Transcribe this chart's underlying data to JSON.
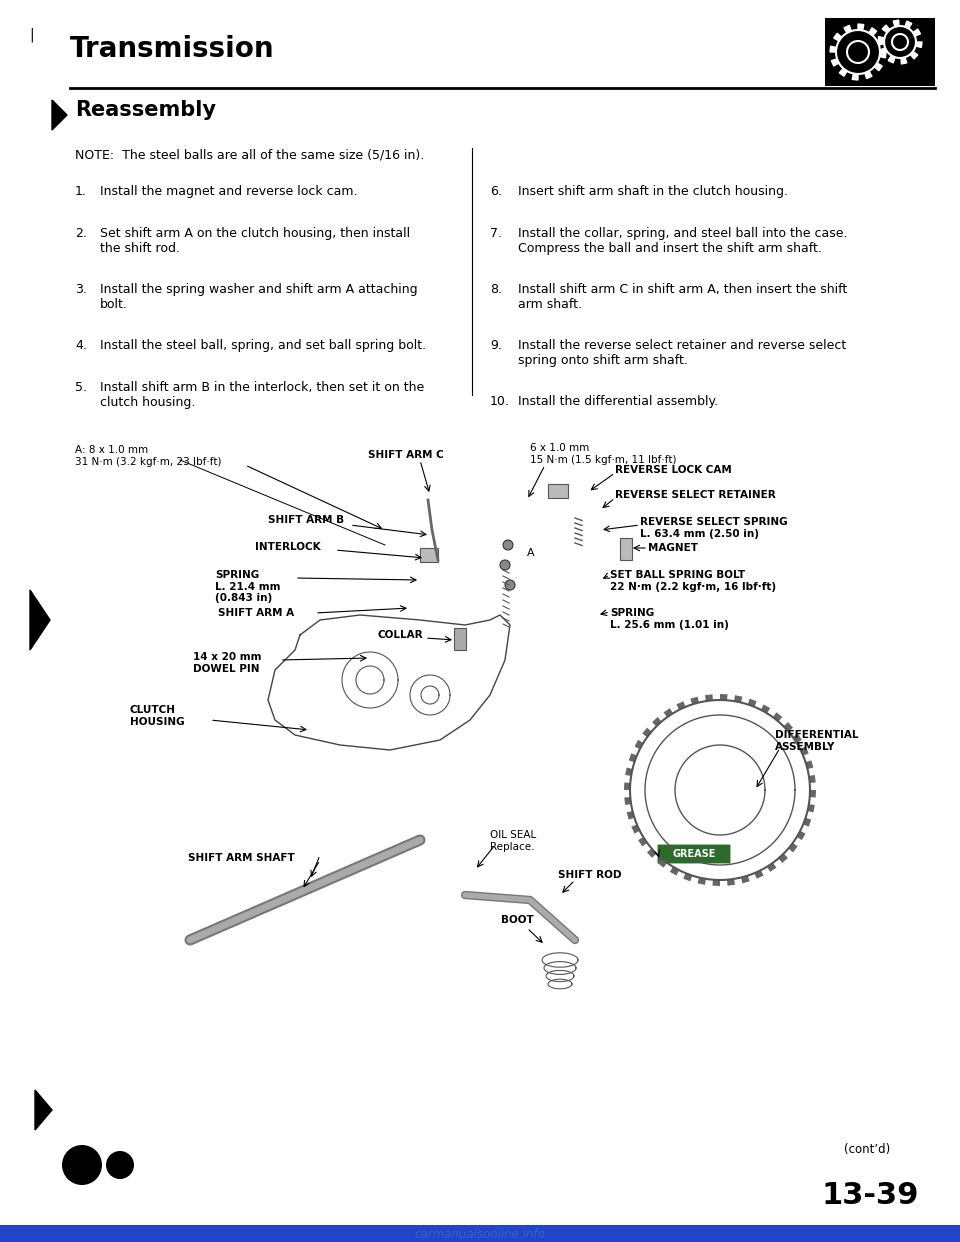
{
  "title": "Transmission",
  "section": "Reassembly",
  "note": "NOTE:  The steel balls are all of the same size (5/16 in).",
  "steps_left": [
    {
      "num": "1.",
      "text": "Install the magnet and reverse lock cam."
    },
    {
      "num": "2.",
      "text": "Set shift arm A on the clutch housing, then install\nthe shift rod."
    },
    {
      "num": "3.",
      "text": "Install the spring washer and shift arm A attaching\nbolt."
    },
    {
      "num": "4.",
      "text": "Install the steel ball, spring, and set ball spring bolt."
    },
    {
      "num": "5.",
      "text": "Install shift arm B in the interlock, then set it on the\nclutch housing."
    }
  ],
  "steps_right": [
    {
      "num": "6.",
      "text": "Insert shift arm shaft in the clutch housing."
    },
    {
      "num": "7.",
      "text": "Install the collar, spring, and steel ball into the case.\nCompress the ball and insert the shift arm shaft."
    },
    {
      "num": "8.",
      "text": "Install shift arm C in shift arm A, then insert the shift\narm shaft."
    },
    {
      "num": "9.",
      "text": "Install the reverse select retainer and reverse select\nspring onto shift arm shaft."
    },
    {
      "num": "10.",
      "text": "Install the differential assembly."
    }
  ],
  "page_number": "13-39",
  "contd": "(cont’d)",
  "watermark": "carmanualsonline.info",
  "bg_color": "#ffffff",
  "text_color": "#000000",
  "title_fontsize": 20,
  "section_fontsize": 15,
  "body_fontsize": 9,
  "note_fontsize": 9
}
